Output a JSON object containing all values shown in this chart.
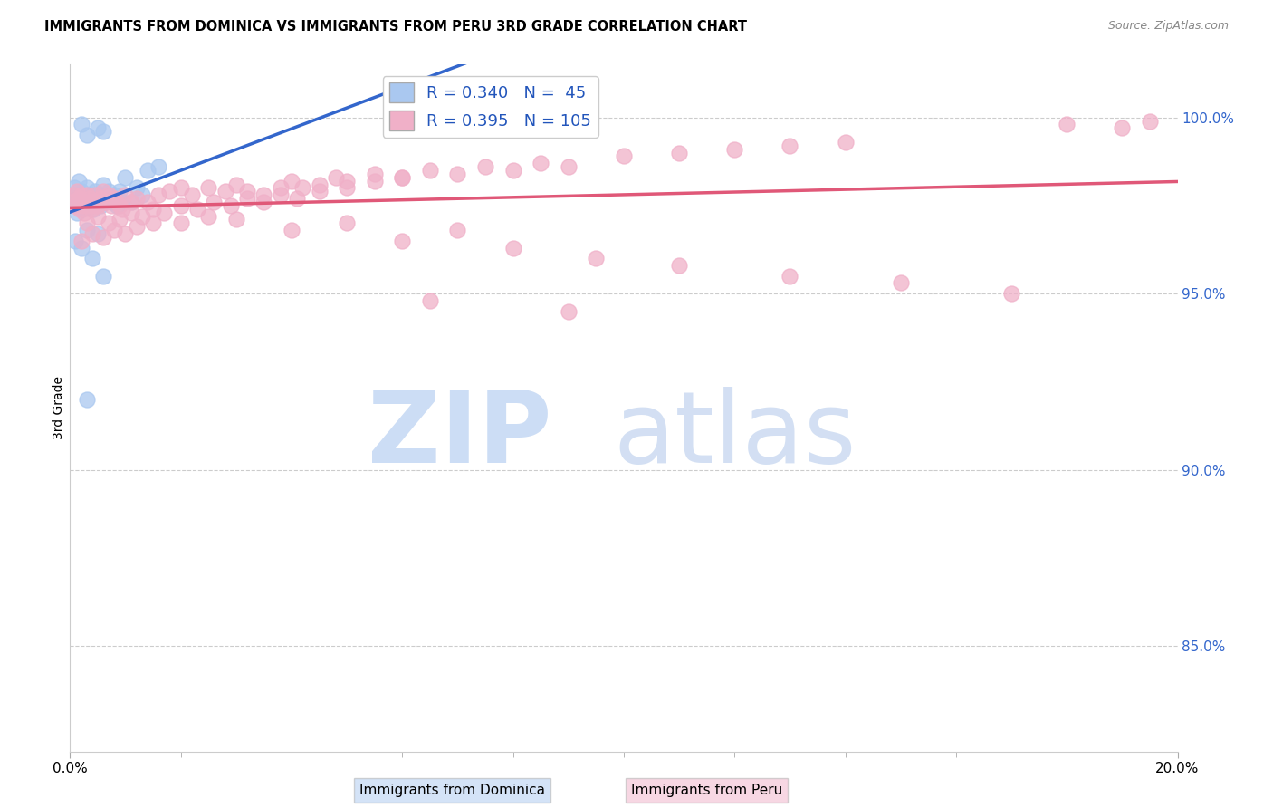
{
  "title": "IMMIGRANTS FROM DOMINICA VS IMMIGRANTS FROM PERU 3RD GRADE CORRELATION CHART",
  "source": "Source: ZipAtlas.com",
  "ylabel": "3rd Grade",
  "right_yticks": [
    85.0,
    90.0,
    95.0,
    100.0
  ],
  "right_ytick_labels": [
    "85.0%",
    "90.0%",
    "95.0%",
    "100.0%"
  ],
  "dominica_color": "#aac8f0",
  "peru_color": "#f0b0c8",
  "dominica_line_color": "#3366cc",
  "peru_line_color": "#e05878",
  "dominica_R": 0.34,
  "dominica_N": 45,
  "peru_R": 0.395,
  "peru_N": 105,
  "legend_text_color": "#2255bb",
  "xmin": 0.0,
  "xmax": 20.0,
  "ymin": 82.0,
  "ymax": 101.5,
  "dominica_x": [
    0.05,
    0.08,
    0.1,
    0.12,
    0.15,
    0.18,
    0.2,
    0.22,
    0.25,
    0.28,
    0.3,
    0.32,
    0.35,
    0.38,
    0.4,
    0.42,
    0.45,
    0.48,
    0.5,
    0.55,
    0.6,
    0.65,
    0.7,
    0.75,
    0.8,
    0.85,
    0.9,
    0.95,
    1.0,
    1.1,
    1.2,
    1.3,
    1.4,
    1.6,
    0.1,
    0.2,
    0.3,
    0.4,
    0.5,
    0.6,
    0.2,
    0.3,
    0.5,
    0.6,
    0.3
  ],
  "dominica_y": [
    97.8,
    98.0,
    97.5,
    97.3,
    98.2,
    97.6,
    97.9,
    97.4,
    97.7,
    97.5,
    98.0,
    97.6,
    97.8,
    97.5,
    97.7,
    97.4,
    97.9,
    97.6,
    97.8,
    97.5,
    98.1,
    97.7,
    97.9,
    97.6,
    97.8,
    97.5,
    97.9,
    97.6,
    98.3,
    97.6,
    98.0,
    97.8,
    98.5,
    98.6,
    96.5,
    96.3,
    96.8,
    96.0,
    96.7,
    95.5,
    99.8,
    99.5,
    99.7,
    99.6,
    92.0
  ],
  "peru_x": [
    0.05,
    0.08,
    0.1,
    0.12,
    0.15,
    0.18,
    0.2,
    0.22,
    0.25,
    0.28,
    0.3,
    0.32,
    0.35,
    0.38,
    0.4,
    0.42,
    0.45,
    0.48,
    0.5,
    0.55,
    0.6,
    0.65,
    0.7,
    0.75,
    0.8,
    0.85,
    0.9,
    0.95,
    1.0,
    1.1,
    1.2,
    1.4,
    1.6,
    1.8,
    2.0,
    2.2,
    2.5,
    2.8,
    3.0,
    3.2,
    3.5,
    3.8,
    4.0,
    4.2,
    4.5,
    4.8,
    5.0,
    5.5,
    6.0,
    6.5,
    7.0,
    7.5,
    8.0,
    8.5,
    9.0,
    10.0,
    11.0,
    12.0,
    13.0,
    14.0,
    0.3,
    0.5,
    0.7,
    0.9,
    1.1,
    1.3,
    1.5,
    1.7,
    2.0,
    2.3,
    2.6,
    2.9,
    3.2,
    3.5,
    3.8,
    4.1,
    4.5,
    5.0,
    5.5,
    6.0,
    0.2,
    0.4,
    0.6,
    0.8,
    1.0,
    1.2,
    1.5,
    2.0,
    2.5,
    3.0,
    4.0,
    5.0,
    6.0,
    7.0,
    8.0,
    9.5,
    11.0,
    13.0,
    15.0,
    17.0,
    18.0,
    19.0,
    19.5,
    6.5,
    9.0
  ],
  "peru_y": [
    97.6,
    97.8,
    97.5,
    97.9,
    97.7,
    97.4,
    97.8,
    97.5,
    97.3,
    97.6,
    97.8,
    97.5,
    97.7,
    97.4,
    97.6,
    97.5,
    97.8,
    97.6,
    97.5,
    97.7,
    97.9,
    97.6,
    97.8,
    97.5,
    97.7,
    97.6,
    97.5,
    97.4,
    97.8,
    97.6,
    97.7,
    97.6,
    97.8,
    97.9,
    98.0,
    97.8,
    98.0,
    97.9,
    98.1,
    97.9,
    97.8,
    98.0,
    98.2,
    98.0,
    98.1,
    98.3,
    98.2,
    98.4,
    98.3,
    98.5,
    98.4,
    98.6,
    98.5,
    98.7,
    98.6,
    98.9,
    99.0,
    99.1,
    99.2,
    99.3,
    97.0,
    97.2,
    97.0,
    97.1,
    97.3,
    97.2,
    97.4,
    97.3,
    97.5,
    97.4,
    97.6,
    97.5,
    97.7,
    97.6,
    97.8,
    97.7,
    97.9,
    98.0,
    98.2,
    98.3,
    96.5,
    96.7,
    96.6,
    96.8,
    96.7,
    96.9,
    97.0,
    97.0,
    97.2,
    97.1,
    96.8,
    97.0,
    96.5,
    96.8,
    96.3,
    96.0,
    95.8,
    95.5,
    95.3,
    95.0,
    99.8,
    99.7,
    99.9,
    94.8,
    94.5
  ]
}
